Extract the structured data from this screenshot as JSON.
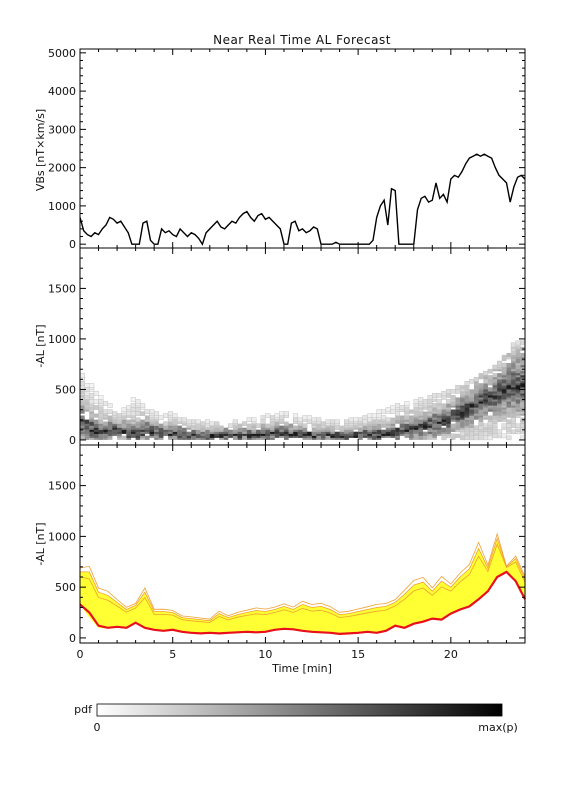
{
  "title": "Near Real Time AL Forecast",
  "chart_data": [
    {
      "type": "line",
      "panel": "top",
      "ylabel": "VBs [nT×km/s]",
      "xlim": [
        0,
        24
      ],
      "ylim": [
        -100,
        5100
      ],
      "yticks": [
        0,
        1000,
        2000,
        3000,
        4000,
        5000
      ],
      "series": [
        {
          "color": "#000000",
          "x": [
            0,
            0.2,
            0.4,
            0.6,
            0.8,
            1.0,
            1.2,
            1.4,
            1.6,
            1.8,
            2.0,
            2.2,
            2.4,
            2.6,
            2.8,
            3.0,
            3.2,
            3.4,
            3.6,
            3.8,
            4.0,
            4.2,
            4.4,
            4.6,
            4.8,
            5.0,
            5.2,
            5.4,
            5.6,
            5.8,
            6.0,
            6.2,
            6.4,
            6.6,
            6.8,
            7.0,
            7.2,
            7.4,
            7.6,
            7.8,
            8.0,
            8.2,
            8.4,
            8.6,
            8.8,
            9.0,
            9.2,
            9.4,
            9.6,
            9.8,
            10.0,
            10.2,
            10.4,
            10.6,
            10.8,
            11.0,
            11.2,
            11.4,
            11.6,
            11.8,
            12.0,
            12.2,
            12.4,
            12.6,
            12.8,
            13.0,
            13.2,
            13.4,
            13.6,
            13.8,
            14.0,
            14.2,
            14.4,
            14.6,
            14.8,
            15.0,
            15.2,
            15.4,
            15.6,
            15.8,
            16.0,
            16.2,
            16.4,
            16.6,
            16.8,
            17.0,
            17.2,
            17.4,
            17.6,
            17.8,
            18.0,
            18.2,
            18.4,
            18.6,
            18.8,
            19.0,
            19.2,
            19.4,
            19.6,
            19.8,
            20.0,
            20.2,
            20.4,
            20.6,
            20.8,
            21.0,
            21.2,
            21.4,
            21.6,
            21.8,
            22.0,
            22.2,
            22.4,
            22.6,
            22.8,
            23.0,
            23.2,
            23.4,
            23.6,
            23.8,
            24.0
          ],
          "y": [
            700,
            350,
            250,
            200,
            300,
            250,
            400,
            500,
            700,
            650,
            550,
            600,
            450,
            300,
            0,
            0,
            0,
            550,
            600,
            100,
            0,
            0,
            400,
            300,
            350,
            250,
            200,
            400,
            300,
            200,
            300,
            250,
            150,
            0,
            300,
            400,
            500,
            600,
            450,
            400,
            500,
            600,
            550,
            700,
            800,
            850,
            700,
            600,
            750,
            800,
            650,
            700,
            600,
            500,
            400,
            0,
            0,
            550,
            600,
            350,
            400,
            300,
            350,
            450,
            400,
            0,
            0,
            0,
            0,
            50,
            0,
            0,
            0,
            0,
            0,
            0,
            0,
            0,
            0,
            100,
            700,
            1000,
            1150,
            500,
            1450,
            1400,
            0,
            0,
            0,
            0,
            0,
            900,
            1200,
            1250,
            1100,
            1150,
            1600,
            1200,
            1300,
            1100,
            1700,
            1800,
            1750,
            1900,
            2100,
            2250,
            2300,
            2350,
            2300,
            2350,
            2300,
            2250,
            2000,
            1800,
            1700,
            1600,
            1100,
            1500,
            1750,
            1800,
            1700
          ]
        }
      ]
    },
    {
      "type": "heatmap",
      "panel": "middle",
      "ylabel": "-AL [nT]",
      "xlim": [
        0,
        24
      ],
      "ylim": [
        -50,
        1900
      ],
      "yticks": [
        0,
        500,
        1000,
        1500
      ],
      "median": {
        "x": [
          0,
          0.5,
          1,
          1.5,
          2,
          2.5,
          3,
          3.5,
          4,
          4.5,
          5,
          5.5,
          6,
          6.5,
          7,
          7.5,
          8,
          8.5,
          9,
          9.5,
          10,
          10.5,
          11,
          11.5,
          12,
          12.5,
          13,
          13.5,
          14,
          14.5,
          15,
          15.5,
          16,
          16.5,
          17,
          17.5,
          18,
          18.5,
          19,
          19.5,
          20,
          20.5,
          21,
          21.5,
          22,
          22.5,
          23,
          23.5,
          24
        ],
        "y": [
          200,
          100,
          60,
          70,
          80,
          60,
          50,
          80,
          60,
          40,
          50,
          40,
          30,
          20,
          20,
          30,
          30,
          30,
          30,
          40,
          40,
          50,
          50,
          40,
          40,
          30,
          30,
          30,
          20,
          30,
          30,
          40,
          30,
          40,
          60,
          80,
          100,
          120,
          140,
          160,
          200,
          250,
          300,
          350,
          400,
          450,
          500,
          520,
          550
        ]
      },
      "spread": {
        "x": [
          0,
          0.5,
          1,
          1.5,
          2,
          2.5,
          3,
          3.5,
          4,
          4.5,
          5,
          5.5,
          6,
          6.5,
          7,
          7.5,
          8,
          8.5,
          9,
          9.5,
          10,
          10.5,
          11,
          11.5,
          12,
          12.5,
          13,
          13.5,
          14,
          14.5,
          15,
          15.5,
          16,
          16.5,
          17,
          17.5,
          18,
          18.5,
          19,
          19.5,
          20,
          20.5,
          21,
          21.5,
          22,
          22.5,
          23,
          23.5,
          24
        ],
        "y": [
          650,
          550,
          450,
          350,
          300,
          280,
          420,
          320,
          260,
          220,
          260,
          200,
          170,
          180,
          170,
          160,
          160,
          170,
          180,
          190,
          220,
          230,
          250,
          230,
          220,
          200,
          190,
          180,
          170,
          180,
          200,
          220,
          260,
          270,
          320,
          340,
          370,
          390,
          420,
          440,
          480,
          530,
          570,
          610,
          680,
          760,
          840,
          950,
          1050
        ]
      },
      "colorbar": {
        "label": "pdf",
        "min_label": "0",
        "max_label": "max(p)"
      }
    },
    {
      "type": "area",
      "panel": "bottom",
      "ylabel": "-AL [nT]",
      "xlabel": "Time [min]",
      "xlim": [
        0,
        24
      ],
      "ylim": [
        -50,
        1900
      ],
      "yticks": [
        0,
        500,
        1000,
        1500
      ],
      "xticks": [
        0,
        5,
        10,
        15,
        20
      ],
      "band_color": "#ffff33",
      "band_edge_color": "#f0a030",
      "line_color": "#e8101a",
      "x": [
        0,
        0.5,
        1,
        1.5,
        2,
        2.5,
        3,
        3.5,
        4,
        4.5,
        5,
        5.5,
        6,
        6.5,
        7,
        7.5,
        8,
        8.5,
        9,
        9.5,
        10,
        10.5,
        11,
        11.5,
        12,
        12.5,
        13,
        13.5,
        14,
        14.5,
        15,
        15.5,
        16,
        16.5,
        17,
        17.5,
        18,
        18.5,
        19,
        19.5,
        20,
        20.5,
        21,
        21.5,
        22,
        22.5,
        23,
        23.5,
        24
      ],
      "lower": [
        330,
        200,
        100,
        90,
        110,
        100,
        150,
        100,
        80,
        70,
        80,
        60,
        50,
        45,
        50,
        45,
        50,
        55,
        60,
        55,
        60,
        80,
        90,
        85,
        70,
        60,
        55,
        50,
        40,
        45,
        50,
        60,
        50,
        70,
        120,
        100,
        140,
        160,
        190,
        180,
        240,
        280,
        310,
        380,
        460,
        600,
        650,
        560,
        380
      ],
      "upper": [
        650,
        650,
        450,
        420,
        350,
        280,
        320,
        450,
        260,
        260,
        250,
        200,
        190,
        180,
        170,
        240,
        200,
        230,
        250,
        270,
        260,
        280,
        310,
        280,
        330,
        300,
        310,
        280,
        230,
        240,
        260,
        280,
        300,
        310,
        350,
        430,
        520,
        550,
        460,
        560,
        500,
        600,
        680,
        880,
        690,
        980,
        700,
        780,
        580
      ],
      "median": [
        330,
        250,
        120,
        100,
        110,
        100,
        150,
        100,
        80,
        70,
        80,
        60,
        50,
        45,
        50,
        45,
        50,
        55,
        60,
        55,
        60,
        80,
        90,
        85,
        70,
        60,
        55,
        50,
        40,
        45,
        50,
        60,
        50,
        70,
        120,
        100,
        140,
        160,
        190,
        180,
        240,
        280,
        310,
        380,
        460,
        600,
        650,
        560,
        380
      ]
    }
  ]
}
